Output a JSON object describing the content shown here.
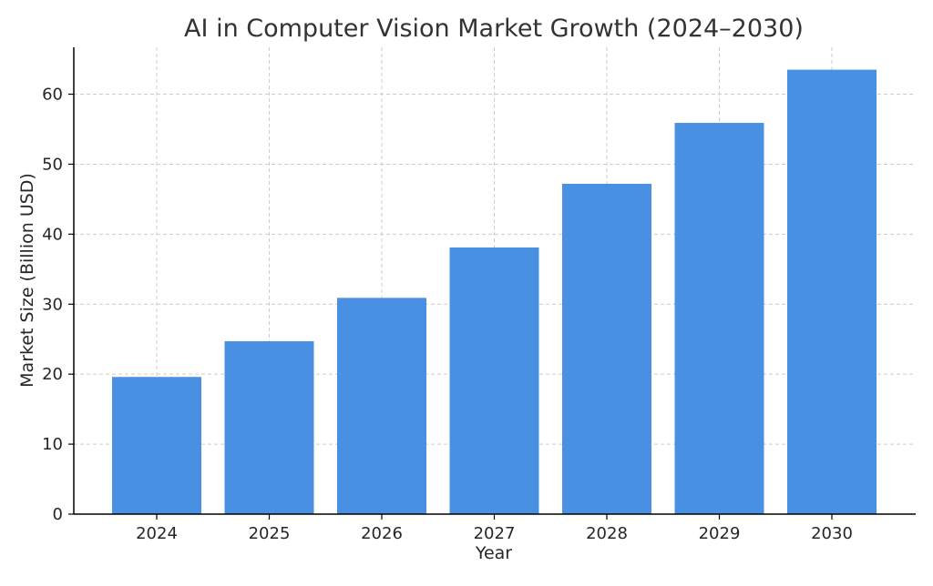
{
  "chart_data": {
    "type": "bar",
    "title": "AI in Computer Vision Market Growth (2024–2030)",
    "xlabel": "Year",
    "ylabel": "Market Size (Billion USD)",
    "categories": [
      "2024",
      "2025",
      "2026",
      "2027",
      "2028",
      "2029",
      "2030"
    ],
    "values": [
      19.6,
      24.7,
      30.9,
      38.1,
      47.2,
      55.9,
      63.5
    ],
    "ylim": [
      0,
      66.7
    ],
    "yticks": [
      0,
      10,
      20,
      30,
      40,
      50,
      60
    ],
    "grid": true,
    "bar_color": "#4a90e2",
    "grid_color": "#cccccc",
    "axis_color": "#000000"
  }
}
